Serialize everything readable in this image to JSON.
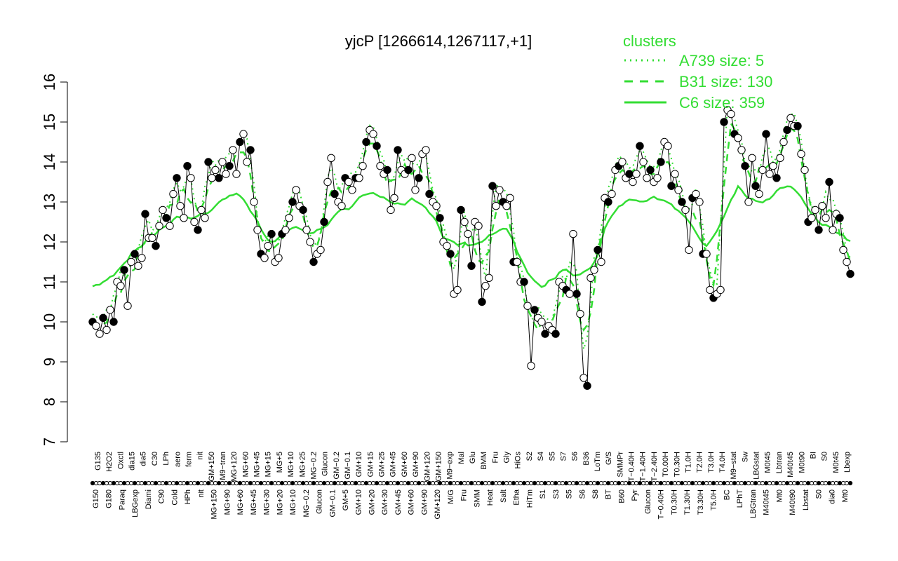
{
  "chart_data": {
    "type": "line",
    "title": "yjcP [1266614,1267117,+1]",
    "xlabel": "",
    "ylabel": "",
    "ylim": [
      7,
      16
    ],
    "yticks": [
      7,
      8,
      9,
      10,
      11,
      12,
      13,
      14,
      15,
      16
    ],
    "grid": false,
    "legend": {
      "title": "clusters",
      "placement": "top-right",
      "color": "#33dd33",
      "items": [
        {
          "label": "A739 size: 5",
          "style": "dotted"
        },
        {
          "label": "B31 size: 130",
          "style": "dashed"
        },
        {
          "label": "C6 size: 359",
          "style": "solid"
        }
      ]
    },
    "x_labels_top": [
      "G135",
      "H2O2",
      "Oxctl",
      "dia15",
      "dia5",
      "C30",
      "LPh",
      "aero",
      "ferm",
      "nit",
      "GM+150",
      "M9−tran",
      "MG+120",
      "MG+60",
      "MG+45",
      "MG+15",
      "MG+5",
      "MG+10",
      "MG+25",
      "MG−0.2",
      "Glucon",
      "GM−0.2",
      "GM−0.1",
      "GM+10",
      "GM+15",
      "GM+25",
      "GM+45",
      "GM+60",
      "GM+90",
      "GM+120",
      "GM+150",
      "M9−exp",
      "Mal",
      "Glu",
      "BMM",
      "Fru",
      "Gly",
      "HiOs",
      "S2",
      "S4",
      "S5",
      "S7",
      "S6",
      "B36",
      "LoTm",
      "G/S",
      "SMMPr",
      "T−0.40H",
      "T−1.40H",
      "T−2.40H",
      "T0.00H",
      "T0.30H",
      "T1.0H",
      "T2.0H",
      "T3.0H",
      "T4.0H",
      "M9−stat",
      "Sw",
      "LBGstat",
      "M0t45",
      "Lbtran",
      "M40t45",
      "M0t90",
      "BI",
      "S0",
      "M0t45",
      "Lbexp"
    ],
    "x_labels_bottom": [
      "G150",
      "G180",
      "Paraq",
      "LBGexp",
      "Diami",
      "C90",
      "Cold",
      "HPh",
      "nit",
      "MG+150",
      "MG+90",
      "MG+60",
      "MG+45",
      "MG+30",
      "MG+20",
      "MG+10",
      "MG−0.2",
      "Glucon",
      "GM−0.1",
      "GM+5",
      "GM+10",
      "GM+20",
      "GM+30",
      "GM+45",
      "GM+60",
      "GM+90",
      "GM+120",
      "M/G",
      "Fru",
      "SMM",
      "Heat",
      "Salt",
      "Etha",
      "HiTm",
      "S1",
      "S3",
      "S5",
      "S6",
      "S8",
      "BT",
      "B60",
      "Pyr",
      "Glucon",
      "T−0.40H",
      "T0.30H",
      "T1.30H",
      "T3.30H",
      "T5.0H",
      "BC",
      "LPhT",
      "LBGtran",
      "M40t45",
      "Mt0",
      "M40t90",
      "Lbstat",
      "S0",
      "dia0",
      "Mt0"
    ],
    "series": [
      {
        "name": "",
        "style": "line-points",
        "values": [
          10.0,
          9.9,
          9.7,
          10.1,
          9.8,
          10.3,
          10.0,
          11.0,
          10.9,
          11.3,
          10.4,
          11.5,
          11.7,
          11.4,
          11.6,
          12.7,
          12.1,
          12.1,
          11.9,
          12.4,
          12.8,
          12.6,
          12.4,
          13.2,
          13.6,
          12.9,
          12.6,
          13.9,
          13.6,
          12.5,
          12.3,
          12.8,
          12.6,
          14.0,
          13.6,
          13.8,
          13.6,
          14.0,
          13.7,
          13.9,
          14.3,
          13.7,
          14.5,
          14.7,
          14.0,
          14.3,
          13.0,
          12.3,
          11.7,
          11.6,
          11.9,
          12.2,
          11.5,
          11.6,
          12.2,
          12.3,
          12.6,
          13.0,
          13.3,
          12.9,
          12.8,
          12.3,
          12.0,
          11.5,
          11.7,
          11.8,
          12.5,
          13.5,
          14.1,
          13.2,
          13.0,
          12.9,
          13.6,
          13.5,
          13.3,
          13.6,
          13.6,
          13.9,
          14.5,
          14.8,
          14.7,
          14.4,
          13.9,
          13.7,
          13.8,
          12.8,
          13.1,
          14.3,
          13.8,
          13.7,
          13.8,
          14.1,
          13.3,
          13.6,
          14.2,
          14.3,
          13.2,
          13.0,
          12.9,
          12.6,
          12.0,
          11.9,
          11.7,
          10.7,
          10.8,
          12.8,
          12.5,
          12.2,
          11.4,
          12.5,
          12.4,
          10.5,
          10.9,
          11.1,
          13.4,
          12.9,
          13.3,
          13.0,
          12.9,
          13.1,
          11.5,
          11.5,
          11.0,
          11.0,
          10.4,
          8.9,
          10.3,
          10.1,
          10.0,
          9.7,
          9.9,
          9.8,
          9.7,
          11.0,
          10.9,
          10.8,
          10.7,
          12.2,
          10.7,
          10.2,
          8.6,
          8.4,
          11.1,
          11.3,
          11.8,
          11.5,
          13.1,
          13.0,
          13.2,
          13.8,
          13.9,
          14.0,
          13.6,
          13.7,
          13.5,
          13.7,
          14.4,
          14.0,
          13.6,
          13.8,
          13.5,
          13.6,
          14.0,
          14.5,
          14.4,
          13.4,
          13.7,
          13.3,
          13.0,
          12.8,
          11.8,
          13.1,
          13.2,
          13.0,
          11.7,
          11.7,
          10.8,
          10.6,
          10.7,
          10.8,
          15.0,
          15.3,
          15.2,
          14.7,
          14.6,
          14.3,
          13.9,
          13.0,
          14.1,
          13.4,
          13.2,
          13.8,
          14.7,
          13.7,
          13.9,
          13.6,
          14.1,
          14.5,
          14.8,
          15.1,
          14.9,
          14.9,
          14.2,
          13.8,
          12.5,
          12.6,
          12.8,
          12.3,
          12.9,
          12.6,
          13.5,
          12.3,
          12.7,
          12.6,
          11.8,
          11.5,
          11.2
        ]
      }
    ]
  }
}
